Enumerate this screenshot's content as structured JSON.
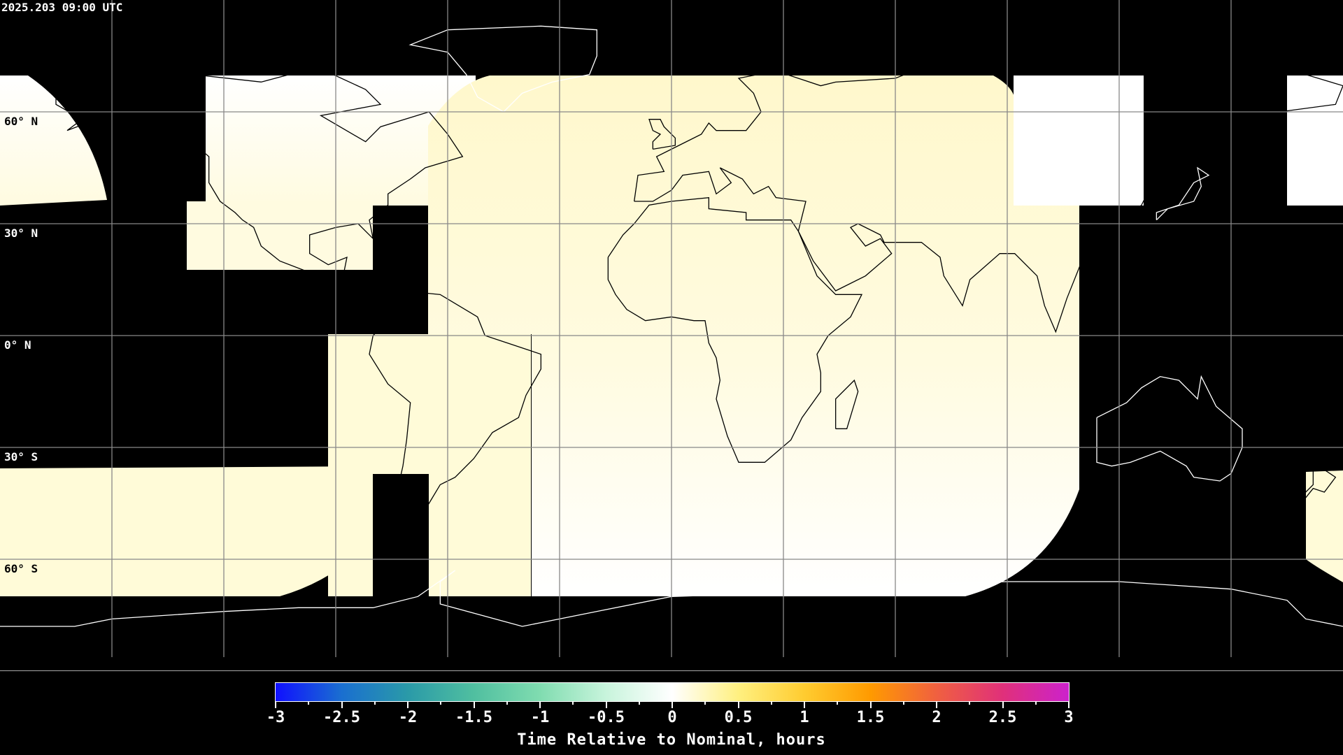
{
  "header": {
    "timestamp": "2025.203 09:00 UTC"
  },
  "map": {
    "projection": "equirectangular",
    "lon_range": [
      -180,
      180
    ],
    "lat_range": [
      -90,
      90
    ],
    "grid_spacing_deg": 30,
    "lat_labels": [
      "60° N",
      "30° N",
      "0° N",
      "30° S",
      "60° S"
    ],
    "background_color": "#000000",
    "coastline_color": "#ffffff"
  },
  "colorbar": {
    "min": -3,
    "max": 3,
    "tick_labels": [
      "-3",
      "-2.5",
      "-2",
      "-1.5",
      "-1",
      "-0.5",
      "0",
      "0.5",
      "1",
      "1.5",
      "2",
      "2.5",
      "3"
    ],
    "colors": [
      "#1010ff",
      "#1a6fd0",
      "#2a9aa8",
      "#50bfa0",
      "#80dcb0",
      "#c8f4dc",
      "#ffffff",
      "#fff080",
      "#ffcc30",
      "#ff9a00",
      "#f06040",
      "#e0307a",
      "#cc22cc"
    ],
    "title": "Time Relative to Nominal, hours"
  }
}
